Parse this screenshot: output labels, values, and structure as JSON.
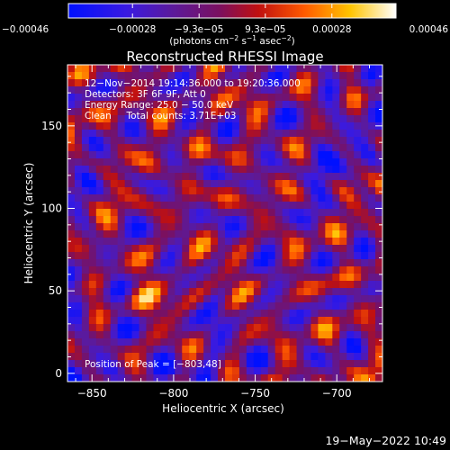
{
  "chart_data": {
    "type": "heatmap",
    "title": "Reconstructed RHESSI Image",
    "xlabel": "Heliocentric X (arcsec)",
    "ylabel": "Heliocentric Y (arcsec)",
    "xlim": [
      -865,
      -672
    ],
    "ylim": [
      -5,
      187
    ],
    "xticks": [
      {
        "value": -850,
        "label": "−850"
      },
      {
        "value": -800,
        "label": "−800"
      },
      {
        "value": -750,
        "label": "−750"
      },
      {
        "value": -700,
        "label": "−700"
      }
    ],
    "yticks": [
      {
        "value": 0,
        "label": "0"
      },
      {
        "value": 50,
        "label": "50"
      },
      {
        "value": 100,
        "label": "100"
      },
      {
        "value": 150,
        "label": "150"
      }
    ],
    "colorbar": {
      "colormap": "red-temperature (blue-purple-red-yellow-white)",
      "range": [
        -0.00046,
        0.00046
      ],
      "ticks": [
        {
          "value": -0.00046,
          "label": "−0.00046"
        },
        {
          "value": -0.00028,
          "label": "−0.00028"
        },
        {
          "value": -9.3e-05,
          "label": "−9.3e−05"
        },
        {
          "value": 9.3e-05,
          "label": "9.3e−05"
        },
        {
          "value": 0.00028,
          "label": "0.00028"
        },
        {
          "value": 0.00046,
          "label": "0.00046"
        }
      ],
      "unit_prefix": "(photons cm",
      "unit_sup1": "−2",
      "unit_mid": " s",
      "unit_sup2": "−1",
      "unit_mid2": " asec",
      "unit_sup3": "−2",
      "unit_suffix": ")"
    },
    "annotations": [
      "12−Nov−2014 19:14:36.000 to 19:20:36.000",
      "Detectors: 3F 6F 9F, Att 0",
      "Energy Range: 25.0 − 50.0 keV",
      "Clean     Total counts: 3.71E+03"
    ],
    "peak_label": "Position of Peak = [−803,48]",
    "peak": {
      "x": -803,
      "y": 48
    },
    "grid": false
  },
  "footer_timestamp": "19−May−2022 10:49"
}
